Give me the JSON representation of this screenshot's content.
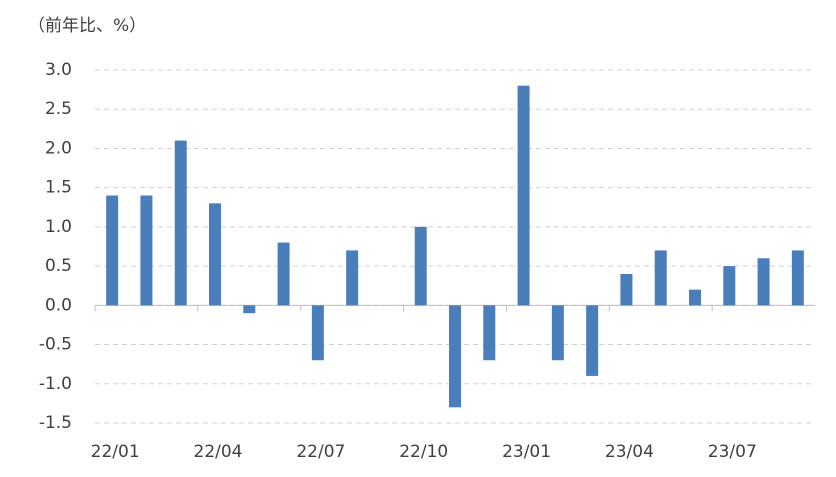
{
  "chart_data": {
    "type": "bar",
    "title": "（前年比、%）",
    "categories": [
      "22/01",
      null,
      null,
      "22/04",
      null,
      null,
      "22/07",
      null,
      null,
      "22/10",
      null,
      null,
      "23/01",
      null,
      null,
      "23/04",
      null,
      null,
      "23/07",
      null,
      null
    ],
    "values": [
      1.4,
      1.4,
      2.1,
      1.3,
      -0.1,
      0.8,
      -0.7,
      0.7,
      0,
      1.0,
      -1.3,
      -0.7,
      2.8,
      -0.7,
      -0.9,
      0.4,
      0.7,
      0.2,
      0.5,
      0.6,
      0.7
    ],
    "color": "#4a7ebb",
    "ylim": [
      -1.5,
      3.0
    ],
    "yticks": [
      {
        "value": 3.0,
        "label": "3.0"
      },
      2.5,
      {
        "value": 2.0,
        "label": "2.0"
      },
      1.5,
      {
        "value": 1.0,
        "label": "1.0"
      },
      0.5,
      {
        "value": 0,
        "label": "0.0"
      },
      -0.5,
      {
        "value": -1.0,
        "label": "-1.0"
      },
      -1.5
    ],
    "grid": true
  }
}
